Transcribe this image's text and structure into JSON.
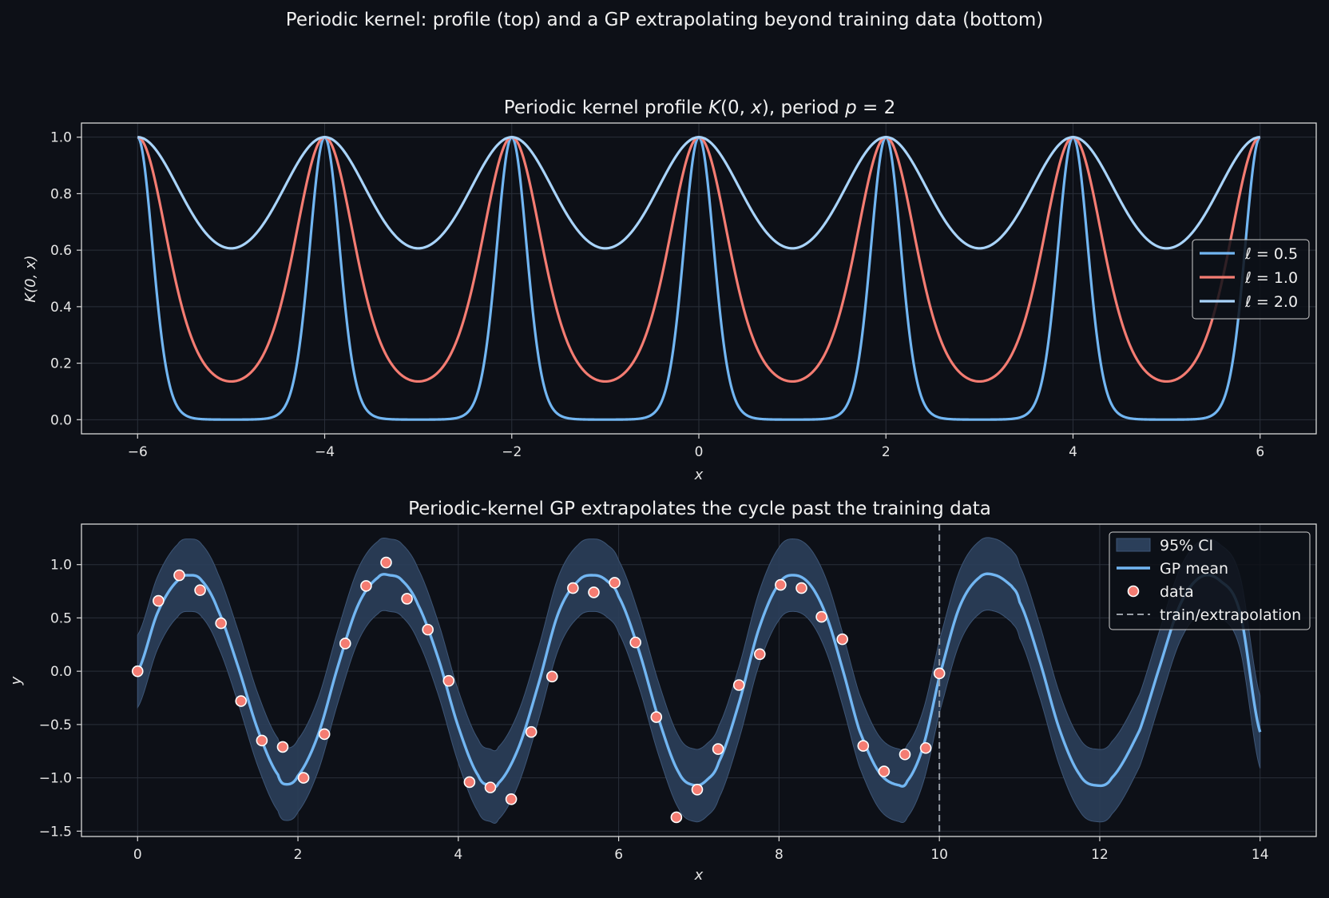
{
  "suptitle": "Periodic kernel: profile (top) and a GP extrapolating beyond training data (bottom)",
  "colors": {
    "background": "#0d1017",
    "axes_edge": "#d8d8d8",
    "grid": "#2a2f3a",
    "blue": "#72b6f2",
    "salmon": "#f47c72",
    "lightblue": "#a9d4fb",
    "ci_fill": "#2b3f5a",
    "divider": "#9aa0a8"
  },
  "chart_data": [
    {
      "type": "line",
      "title": "Periodic kernel profile K(0, x), period p = 2",
      "xlabel": "x",
      "ylabel": "K(0, x)",
      "xlim": [
        -6.6,
        6.6
      ],
      "ylim": [
        -0.05,
        1.05
      ],
      "xticks": [
        -6,
        -4,
        -2,
        0,
        2,
        4,
        6
      ],
      "xtick_labels": [
        "−6",
        "−4",
        "−2",
        "0",
        "2",
        "4",
        "6"
      ],
      "yticks": [
        0.0,
        0.2,
        0.4,
        0.6,
        0.8,
        1.0
      ],
      "ytick_labels": [
        "0.0",
        "0.2",
        "0.4",
        "0.6",
        "0.8",
        "1.0"
      ],
      "grid": true,
      "legend_position": "center-right",
      "period": 2,
      "x_range": [
        -6,
        6
      ],
      "series": [
        {
          "name": "ℓ = 0.5",
          "lengthscale": 0.5,
          "color": "#72b6f2",
          "minimum": 0.0,
          "maximum": 1.0
        },
        {
          "name": "ℓ = 1.0",
          "lengthscale": 1.0,
          "color": "#f47c72",
          "minimum": 0.135,
          "maximum": 1.0
        },
        {
          "name": "ℓ = 2.0",
          "lengthscale": 2.0,
          "color": "#a9d4fb",
          "minimum": 0.607,
          "maximum": 1.0
        }
      ]
    },
    {
      "type": "line",
      "title": "Periodic-kernel GP extrapolates the cycle past the training data",
      "xlabel": "x",
      "ylabel": "y",
      "xlim": [
        -0.7,
        14.7
      ],
      "ylim": [
        -1.55,
        1.38
      ],
      "xticks": [
        0,
        2,
        4,
        6,
        8,
        10,
        12,
        14
      ],
      "xtick_labels": [
        "0",
        "2",
        "4",
        "6",
        "8",
        "10",
        "12",
        "14"
      ],
      "yticks": [
        -1.5,
        -1.0,
        -0.5,
        0.0,
        0.5,
        1.0
      ],
      "ytick_labels": [
        "−1.5",
        "−1.0",
        "−0.5",
        "0.0",
        "0.5",
        "1.0"
      ],
      "grid": true,
      "legend_position": "top-right",
      "legend": [
        "95% CI",
        "GP mean",
        "data",
        "train/extrapolation"
      ],
      "train_extrapolation_boundary": 10,
      "gp_mean": {
        "name": "GP mean",
        "x": [
          0.0,
          0.25,
          0.5,
          0.65,
          0.8,
          1.0,
          1.25,
          1.5,
          1.75,
          1.85,
          2.0,
          2.25,
          2.5,
          2.75,
          3.0,
          3.15,
          3.3,
          3.5,
          3.75,
          4.0,
          4.25,
          4.4,
          4.5,
          4.75,
          5.0,
          5.25,
          5.5,
          5.7,
          5.85,
          6.0,
          6.25,
          6.5,
          6.75,
          6.95,
          7.1,
          7.25,
          7.5,
          7.75,
          8.0,
          8.2,
          8.4,
          8.6,
          8.8,
          9.0,
          9.25,
          9.5,
          9.6,
          9.8,
          10.0,
          10.25,
          10.5,
          10.7,
          10.9,
          11.0,
          11.25,
          11.5,
          11.75,
          11.95,
          12.15,
          12.5,
          12.75,
          13.0,
          13.25,
          13.5,
          13.75,
          14.0
        ],
        "y": [
          0.0,
          0.55,
          0.85,
          0.9,
          0.85,
          0.58,
          0.05,
          -0.55,
          -0.97,
          -1.06,
          -0.98,
          -0.6,
          0.05,
          0.62,
          0.88,
          0.9,
          0.85,
          0.62,
          0.12,
          -0.52,
          -0.98,
          -1.07,
          -1.05,
          -0.72,
          -0.12,
          0.55,
          0.85,
          0.9,
          0.85,
          0.7,
          0.2,
          -0.45,
          -0.95,
          -1.07,
          -1.02,
          -0.85,
          -0.3,
          0.4,
          0.82,
          0.9,
          0.8,
          0.5,
          0.0,
          -0.55,
          -0.95,
          -1.07,
          -1.03,
          -0.7,
          -0.05,
          0.6,
          0.88,
          0.9,
          0.8,
          0.65,
          0.1,
          -0.55,
          -0.97,
          -1.07,
          -1.0,
          -0.55,
          0.05,
          0.62,
          0.88,
          0.85,
          0.55,
          -0.57
        ]
      },
      "ci_95": {
        "name": "95% CI",
        "half_width_near": 0.34,
        "half_width_far": 0.35,
        "upper_peak": 1.24,
        "lower_trough": -1.42
      },
      "data": {
        "name": "data",
        "x": [
          0.0,
          0.26,
          0.52,
          0.78,
          1.04,
          1.29,
          1.55,
          1.81,
          2.07,
          2.33,
          2.59,
          2.85,
          3.1,
          3.36,
          3.62,
          3.88,
          4.14,
          4.4,
          4.66,
          4.91,
          5.17,
          5.43,
          5.69,
          5.95,
          6.21,
          6.47,
          6.72,
          6.98,
          7.24,
          7.5,
          7.76,
          8.02,
          8.28,
          8.53,
          8.79,
          9.05,
          9.31,
          9.57,
          9.83,
          10.0
        ],
        "y": [
          0.0,
          0.66,
          0.9,
          0.76,
          0.45,
          -0.28,
          -0.65,
          -0.71,
          -1.0,
          -0.59,
          0.26,
          0.8,
          1.02,
          0.68,
          0.39,
          -0.09,
          -1.04,
          -1.09,
          -1.2,
          -0.57,
          -0.05,
          0.78,
          0.74,
          0.83,
          0.27,
          -0.43,
          -1.37,
          -1.11,
          -0.73,
          -0.13,
          0.16,
          0.81,
          0.78,
          0.51,
          0.3,
          -0.7,
          -0.94,
          -0.78,
          -0.72,
          -0.02
        ]
      }
    }
  ]
}
